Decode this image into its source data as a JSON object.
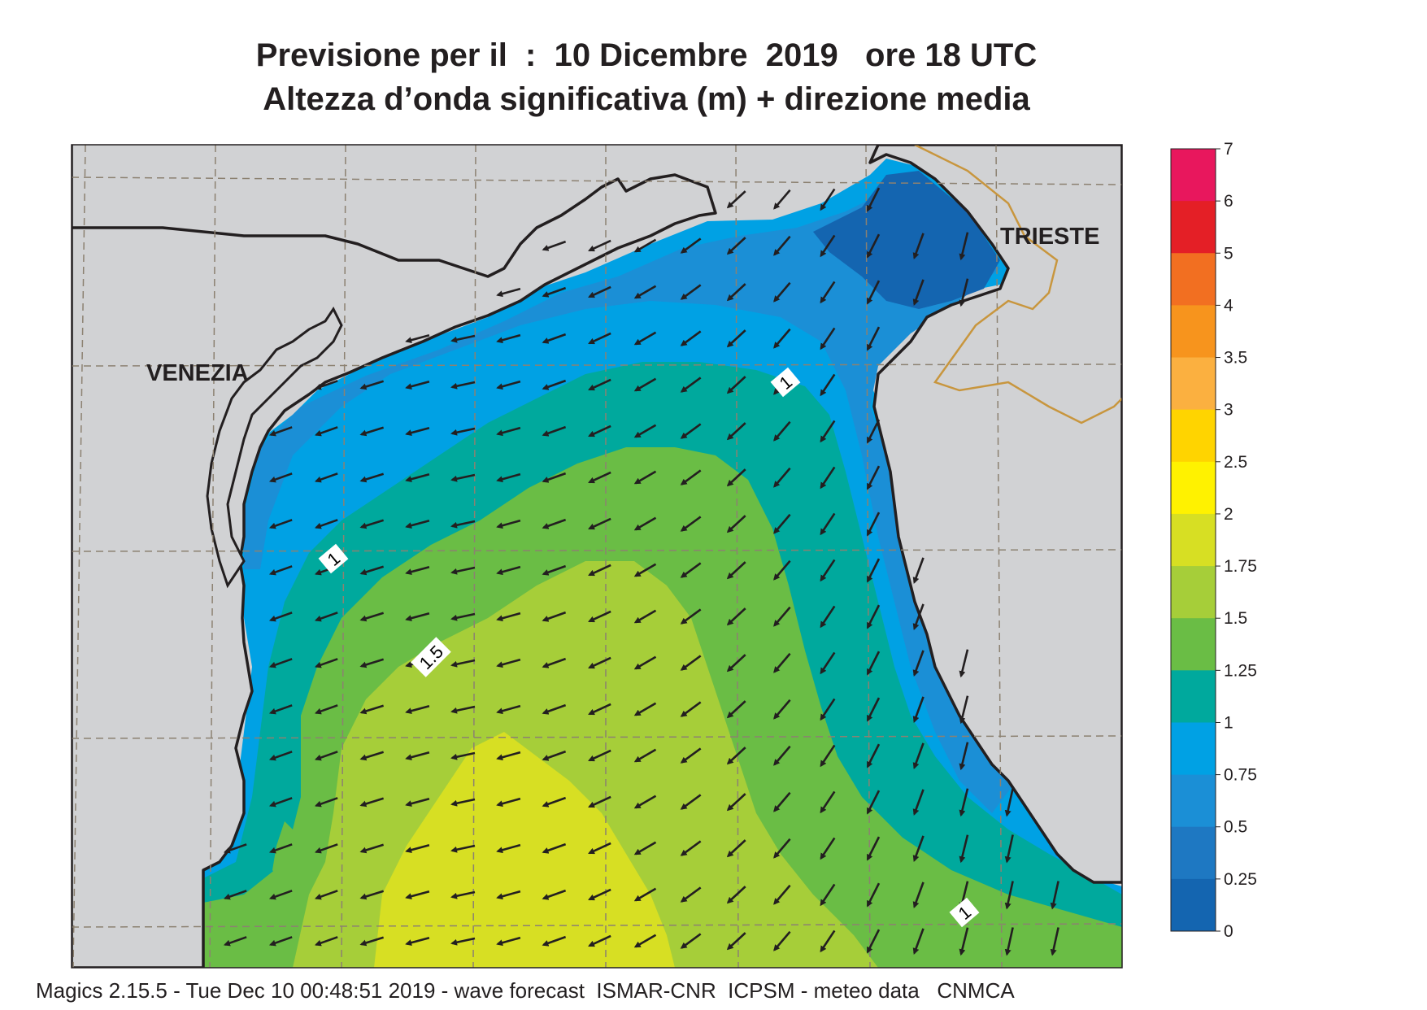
{
  "title": {
    "line1": "Previsione per il  :  10 Dicembre  2019   ore 18 UTC",
    "line2": "Altezza d’onda significativa (m) + direzione media"
  },
  "cities": {
    "venezia": "VENEZIA",
    "trieste": "TRIESTE"
  },
  "contour_labels": [
    "1",
    "1",
    "1.5",
    "1"
  ],
  "legend": {
    "ticks": [
      "7",
      "6",
      "5",
      "4",
      "3.5",
      "3",
      "2.5",
      "2",
      "1.75",
      "1.5",
      "1.25",
      "1",
      "0.75",
      "0.5",
      "0.25",
      "0"
    ],
    "colors": [
      "#e8175d",
      "#e41f26",
      "#f26f21",
      "#f7941d",
      "#fbb040",
      "#ffd400",
      "#fff200",
      "#d7df23",
      "#a6ce39",
      "#6abd45",
      "#00a99d",
      "#00a1e4",
      "#1b8fd6",
      "#1e78c2",
      "#1465b0"
    ]
  },
  "colors": {
    "land": "#d1d2d4",
    "grid": "#8c8171",
    "border": "#c8963e",
    "coast": "#231f20",
    "arrow": "#231f20"
  },
  "footer": "Magics 2.15.5 - Tue Dec 10 00:48:51 2019 - wave forecast  ISMAR-CNR  ICPSM - meteo data   CNMCA"
}
